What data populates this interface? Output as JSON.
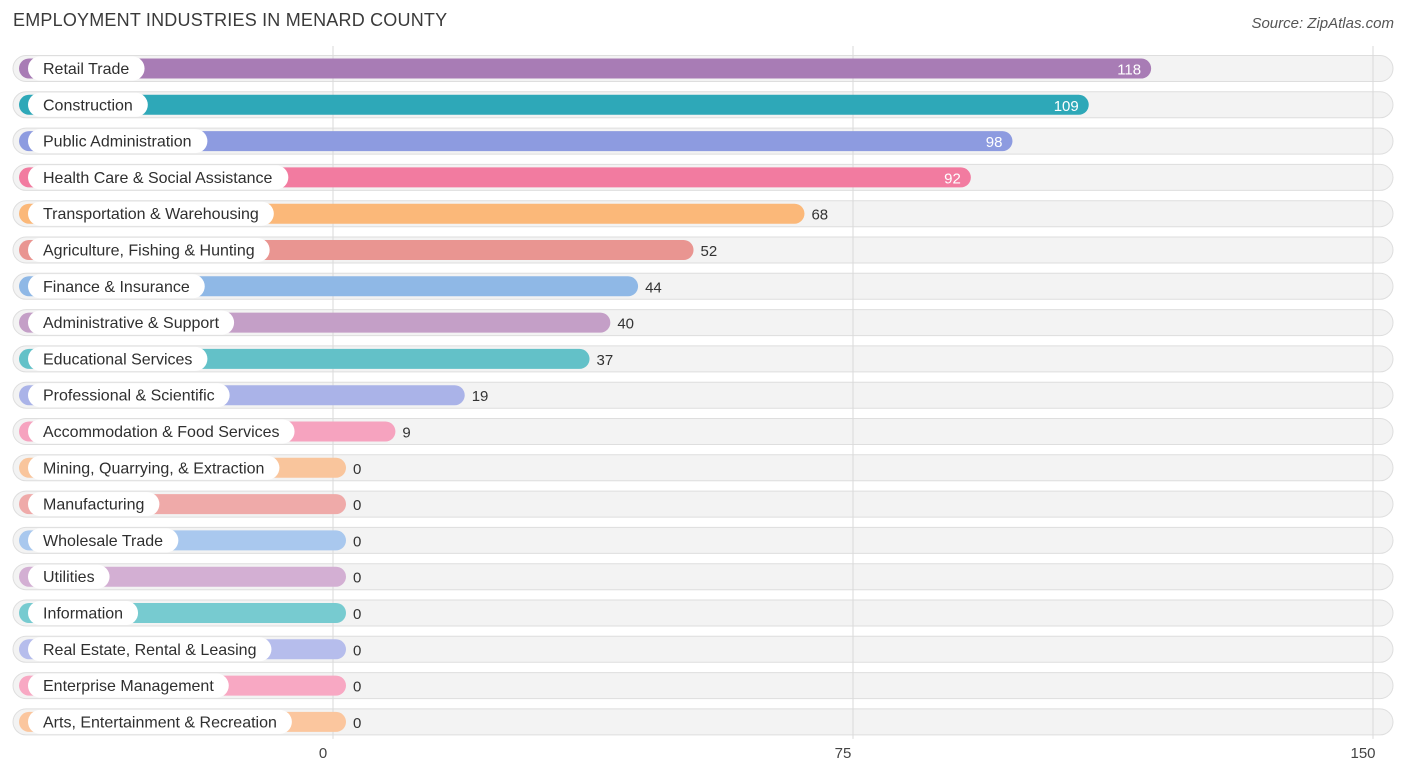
{
  "header": {
    "title": "EMPLOYMENT INDUSTRIES IN MENARD COUNTY",
    "source": "Source: ZipAtlas.com"
  },
  "chart_data": {
    "type": "bar",
    "orientation": "horizontal",
    "title": "EMPLOYMENT INDUSTRIES IN MENARD COUNTY",
    "xlabel": "",
    "ylabel": "",
    "xlim": [
      0,
      150
    ],
    "xticks": [
      {
        "value": 0,
        "label": "0"
      },
      {
        "value": 75,
        "label": "75"
      },
      {
        "value": 150,
        "label": "150"
      }
    ],
    "grid": true,
    "categories": [
      "Retail Trade",
      "Construction",
      "Public Administration",
      "Health Care & Social Assistance",
      "Transportation & Warehousing",
      "Agriculture, Fishing & Hunting",
      "Finance & Insurance",
      "Administrative & Support",
      "Educational Services",
      "Professional & Scientific",
      "Accommodation & Food Services",
      "Mining, Quarrying, & Extraction",
      "Manufacturing",
      "Wholesale Trade",
      "Utilities",
      "Information",
      "Real Estate, Rental & Leasing",
      "Enterprise Management",
      "Arts, Entertainment & Recreation"
    ],
    "values": [
      118,
      109,
      98,
      92,
      68,
      52,
      44,
      40,
      37,
      19,
      9,
      0,
      0,
      0,
      0,
      0,
      0,
      0,
      0
    ],
    "value_labels": [
      "118",
      "109",
      "98",
      "92",
      "68",
      "52",
      "44",
      "40",
      "37",
      "19",
      "9",
      "0",
      "0",
      "0",
      "0",
      "0",
      "0",
      "0",
      "0"
    ],
    "colors": [
      "#a87cb5",
      "#2ea8b8",
      "#8d9be0",
      "#f27ba0",
      "#fbb879",
      "#e99591",
      "#8fb8e6",
      "#c49fc7",
      "#63c1c8",
      "#aab3e8",
      "#f6a3bf",
      "#f9c59c",
      "#efaaa9",
      "#a9c8ee",
      "#d3afd3",
      "#77cbd0",
      "#b6bdec",
      "#f8a8c3",
      "#fbc69e"
    ]
  }
}
